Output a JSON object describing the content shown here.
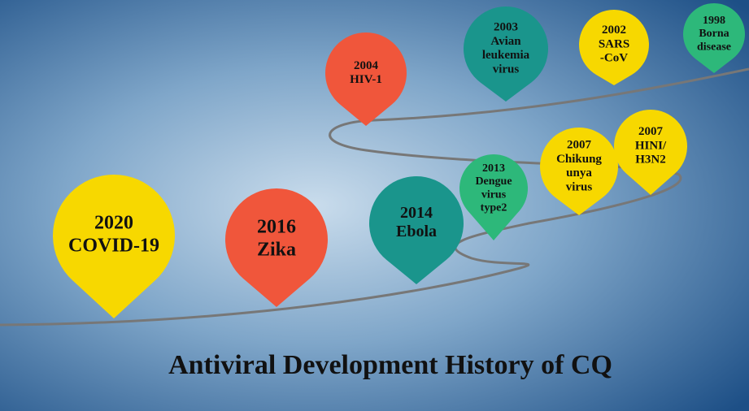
{
  "title": "Antiviral Development History of CQ",
  "nodes": [
    {
      "lines": [
        "2020",
        "COVID-19"
      ]
    },
    {
      "lines": [
        "2016",
        "Zika"
      ]
    },
    {
      "lines": [
        "2014",
        "Ebola"
      ]
    },
    {
      "lines": [
        "2013",
        "Dengue",
        "virus",
        "type2"
      ]
    },
    {
      "lines": [
        "2007",
        "Chikung",
        "unya",
        "virus"
      ]
    },
    {
      "lines": [
        "2007",
        "HINI/",
        "H3N2"
      ]
    },
    {
      "lines": [
        "2004",
        "HIV-1"
      ]
    },
    {
      "lines": [
        "2003",
        "Avian",
        "leukemia",
        "virus"
      ]
    },
    {
      "lines": [
        "2002",
        "SARS",
        "-CoV"
      ]
    },
    {
      "lines": [
        "1998",
        "Borna",
        "disease"
      ]
    }
  ]
}
